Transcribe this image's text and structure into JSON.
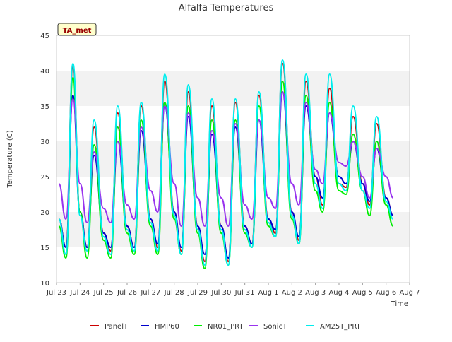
{
  "chart_data": {
    "type": "line",
    "title": "Alfalfa Temperatures",
    "xlabel": "Time",
    "ylabel": "Temperature (C)",
    "ylim": [
      10,
      45
    ],
    "yticks": [
      10,
      15,
      20,
      25,
      30,
      35,
      40,
      45
    ],
    "xlim": [
      0,
      15
    ],
    "x_unit": "days after Jul 23",
    "xticks": [
      {
        "value": 0,
        "label": "Jul 23"
      },
      {
        "value": 1,
        "label": "Jul 24"
      },
      {
        "value": 2,
        "label": "Jul 25"
      },
      {
        "value": 3,
        "label": "Jul 26"
      },
      {
        "value": 4,
        "label": "Jul 27"
      },
      {
        "value": 5,
        "label": "Jul 28"
      },
      {
        "value": 6,
        "label": "Jul 29"
      },
      {
        "value": 7,
        "label": "Jul 30"
      },
      {
        "value": 8,
        "label": "Jul 31"
      },
      {
        "value": 9,
        "label": "Aug 1"
      },
      {
        "value": 10,
        "label": "Aug 2"
      },
      {
        "value": 11,
        "label": "Aug 3"
      },
      {
        "value": 12,
        "label": "Aug 4"
      },
      {
        "value": 13,
        "label": "Aug 5"
      },
      {
        "value": 14,
        "label": "Aug 6"
      },
      {
        "value": 15,
        "label": "Aug 7"
      }
    ],
    "grid": "horizontal bands",
    "legend_position": "bottom",
    "annotation": "TA_met",
    "series": [
      {
        "name": "PanelT",
        "color": "#cc0000",
        "x": [
          0.1,
          0.4,
          0.7,
          1.0,
          1.3,
          1.6,
          2.0,
          2.3,
          2.6,
          3.0,
          3.3,
          3.6,
          4.0,
          4.3,
          4.6,
          5.0,
          5.3,
          5.6,
          6.0,
          6.3,
          6.6,
          7.0,
          7.3,
          7.6,
          8.0,
          8.3,
          8.6,
          9.0,
          9.3,
          9.6,
          10.0,
          10.3,
          10.6,
          11.0,
          11.3,
          11.6,
          12.0,
          12.3,
          12.6,
          13.0,
          13.3,
          13.6,
          14.0,
          14.3
        ],
        "y": [
          19,
          15,
          40.5,
          20,
          15,
          32,
          17,
          14.5,
          34,
          18,
          15,
          35,
          19,
          15,
          38.5,
          20,
          14.5,
          37,
          18,
          13,
          35,
          18,
          13,
          35.5,
          18,
          15.5,
          36.5,
          19,
          17,
          41,
          20,
          16,
          38.5,
          25,
          21,
          37.5,
          24,
          23.5,
          33.5,
          24,
          21,
          32.5,
          22,
          19.5
        ]
      },
      {
        "name": "HMP60",
        "color": "#0000cc",
        "x": [
          0.1,
          0.4,
          0.7,
          1.0,
          1.3,
          1.6,
          2.0,
          2.3,
          2.6,
          3.0,
          3.3,
          3.6,
          4.0,
          4.3,
          4.6,
          5.0,
          5.3,
          5.6,
          6.0,
          6.3,
          6.6,
          7.0,
          7.3,
          7.6,
          8.0,
          8.3,
          8.6,
          9.0,
          9.3,
          9.6,
          10.0,
          10.3,
          10.6,
          11.0,
          11.3,
          11.6,
          12.0,
          12.3,
          12.6,
          13.0,
          13.3,
          13.6,
          14.0,
          14.3
        ],
        "y": [
          19,
          15,
          36.5,
          20,
          15,
          28,
          17,
          15,
          30,
          18,
          15,
          31.5,
          19,
          15.5,
          35,
          20,
          15,
          33.5,
          18,
          14,
          31,
          18,
          13.5,
          32,
          18,
          15.5,
          33,
          19,
          17.5,
          37,
          20,
          16.5,
          35,
          25,
          22,
          34,
          25,
          24,
          30,
          24,
          21.5,
          29,
          22,
          19.5
        ]
      },
      {
        "name": "NR01_PRT",
        "color": "#00ee00",
        "x": [
          0.1,
          0.4,
          0.7,
          1.0,
          1.3,
          1.6,
          2.0,
          2.3,
          2.6,
          3.0,
          3.3,
          3.6,
          4.0,
          4.3,
          4.6,
          5.0,
          5.3,
          5.6,
          6.0,
          6.3,
          6.6,
          7.0,
          7.3,
          7.6,
          8.0,
          8.3,
          8.6,
          9.0,
          9.3,
          9.6,
          10.0,
          10.3,
          10.6,
          11.0,
          11.3,
          11.6,
          12.0,
          12.3,
          12.6,
          13.0,
          13.3,
          13.6,
          14.0,
          14.3
        ],
        "y": [
          18,
          13.5,
          39,
          20,
          13.5,
          29.5,
          16,
          13.5,
          32,
          17,
          14,
          33,
          18,
          14,
          35.5,
          19,
          14,
          35,
          17,
          12,
          33,
          17,
          12.5,
          33,
          17,
          15,
          35,
          18,
          16.5,
          38.5,
          19,
          15.5,
          36.5,
          23,
          20,
          35.5,
          23,
          22.5,
          31,
          23,
          19.5,
          30,
          21,
          18
        ]
      },
      {
        "name": "SonicT",
        "color": "#9933ee",
        "x": [
          0.1,
          0.4,
          0.7,
          1.0,
          1.3,
          1.6,
          2.0,
          2.3,
          2.6,
          3.0,
          3.3,
          3.6,
          4.0,
          4.3,
          4.6,
          5.0,
          5.3,
          5.6,
          6.0,
          6.3,
          6.6,
          7.0,
          7.3,
          7.6,
          8.0,
          8.3,
          8.6,
          9.0,
          9.3,
          9.6,
          10.0,
          10.3,
          10.6,
          11.0,
          11.3,
          11.6,
          12.0,
          12.3,
          12.6,
          13.0,
          13.3,
          13.6,
          14.0,
          14.3
        ],
        "y": [
          24,
          19,
          36,
          24,
          18.5,
          28.5,
          20.5,
          18.5,
          30,
          21,
          19,
          32,
          23,
          20,
          35,
          24,
          18,
          34,
          22,
          18,
          31.5,
          22,
          18,
          32.5,
          21,
          19,
          33,
          22,
          20.5,
          37,
          24,
          21,
          35.5,
          26,
          24,
          34,
          27,
          26.5,
          30,
          25,
          22,
          29,
          25,
          22
        ]
      },
      {
        "name": "AM25T_PRT",
        "color": "#00eeee",
        "x": [
          0.1,
          0.4,
          0.7,
          1.0,
          1.3,
          1.6,
          2.0,
          2.3,
          2.6,
          3.0,
          3.3,
          3.6,
          4.0,
          4.3,
          4.6,
          5.0,
          5.3,
          5.6,
          6.0,
          6.3,
          6.6,
          7.0,
          7.3,
          7.6,
          8.0,
          8.3,
          8.6,
          9.0,
          9.3,
          9.6,
          10.0,
          10.3,
          10.6,
          11.0,
          11.3,
          11.6,
          12.0,
          12.3,
          12.6,
          13.0,
          13.3,
          13.6,
          14.0,
          14.3
        ],
        "y": [
          19,
          14,
          41,
          19.5,
          14.5,
          33,
          16.5,
          14,
          35,
          17.5,
          14.5,
          35.5,
          18.5,
          14.5,
          39.5,
          19.5,
          14,
          38,
          17.5,
          12.5,
          36,
          17.5,
          12.5,
          36,
          17.5,
          15,
          37,
          18.5,
          16.5,
          41.5,
          19.5,
          15.5,
          39.5,
          24,
          20.5,
          39.5,
          24,
          23,
          35,
          23,
          20.5,
          33.5,
          21.5,
          19
        ]
      }
    ]
  }
}
